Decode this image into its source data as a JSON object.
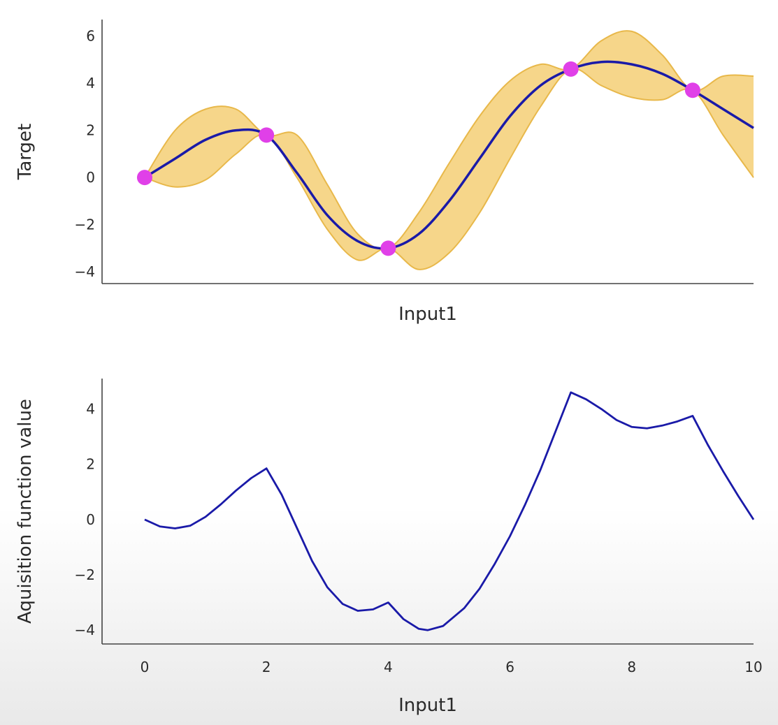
{
  "chart_data": [
    {
      "type": "line",
      "xlabel": "Input1",
      "ylabel": "Target",
      "xlim": [
        -0.7,
        10
      ],
      "ylim": [
        -4.5,
        6.7
      ],
      "yticks": [
        -4,
        -2,
        0,
        2,
        4,
        6
      ],
      "ytick_labels": [
        "−4",
        "−2",
        "0",
        "2",
        "4",
        "6"
      ],
      "grid": false,
      "colors": {
        "mean": "#1a1aa8",
        "band_fill": "#f5cf75",
        "band_edge": "#e8b84a",
        "points": "#e040e8"
      },
      "series": [
        {
          "role": "mean",
          "x": [
            0,
            0.5,
            1,
            1.5,
            2,
            2.5,
            3,
            3.5,
            4,
            4.5,
            5,
            5.5,
            6,
            6.5,
            7,
            7.5,
            8,
            8.5,
            9,
            9.5,
            10
          ],
          "y": [
            0,
            0.8,
            1.6,
            2.0,
            1.8,
            0.2,
            -1.6,
            -2.7,
            -3.0,
            -2.4,
            -1.0,
            0.8,
            2.6,
            3.9,
            4.6,
            4.9,
            4.8,
            4.4,
            3.7,
            2.9,
            2.1
          ]
        },
        {
          "role": "band-upper",
          "x": [
            0,
            0.5,
            1,
            1.5,
            2,
            2.5,
            3,
            3.5,
            4,
            4.5,
            5,
            5.5,
            6,
            6.5,
            7,
            7.5,
            8,
            8.5,
            9,
            9.5,
            10
          ],
          "y": [
            0,
            2.0,
            2.9,
            2.9,
            1.8,
            1.8,
            -0.3,
            -2.4,
            -3.0,
            -1.5,
            0.6,
            2.6,
            4.1,
            4.8,
            4.6,
            5.8,
            6.2,
            5.2,
            3.7,
            4.3,
            4.3
          ]
        },
        {
          "role": "band-lower",
          "x": [
            0,
            0.5,
            1,
            1.5,
            2,
            2.5,
            3,
            3.5,
            4,
            4.5,
            5,
            5.5,
            6,
            6.5,
            7,
            7.5,
            8,
            8.5,
            9,
            9.5,
            10
          ],
          "y": [
            0,
            -0.4,
            -0.1,
            1.0,
            1.8,
            0.0,
            -2.2,
            -3.5,
            -3.0,
            -3.9,
            -3.2,
            -1.5,
            0.8,
            3.0,
            4.6,
            3.9,
            3.4,
            3.3,
            3.7,
            1.8,
            0.0
          ]
        },
        {
          "role": "observations",
          "x": [
            0,
            2,
            4,
            7,
            9
          ],
          "y": [
            0,
            1.8,
            -3.0,
            4.6,
            3.7
          ]
        }
      ]
    },
    {
      "type": "line",
      "xlabel": "Input1",
      "ylabel": "Aquisition function value",
      "xlim": [
        -0.7,
        10
      ],
      "ylim": [
        -4.5,
        5.1
      ],
      "xticks": [
        0,
        2,
        4,
        6,
        8,
        10
      ],
      "xtick_labels": [
        "0",
        "2",
        "4",
        "6",
        "8",
        "10"
      ],
      "yticks": [
        -4,
        -2,
        0,
        2,
        4
      ],
      "ytick_labels": [
        "−4",
        "−2",
        "0",
        "2",
        "4"
      ],
      "grid": false,
      "colors": {
        "line": "#1a1aa8"
      },
      "series": [
        {
          "role": "acquisition",
          "x": [
            0,
            0.25,
            0.5,
            0.75,
            1,
            1.25,
            1.5,
            1.75,
            2,
            2.25,
            2.5,
            2.75,
            3,
            3.25,
            3.5,
            3.75,
            4,
            4.25,
            4.5,
            4.65,
            4.9,
            5.25,
            5.5,
            5.75,
            6,
            6.25,
            6.5,
            6.75,
            7,
            7.25,
            7.5,
            7.75,
            8,
            8.25,
            8.5,
            8.75,
            9,
            9.25,
            9.5,
            9.75,
            10
          ],
          "y": [
            0,
            -0.25,
            -0.32,
            -0.22,
            0.1,
            0.55,
            1.05,
            1.5,
            1.85,
            0.9,
            -0.3,
            -1.5,
            -2.45,
            -3.05,
            -3.3,
            -3.25,
            -3.0,
            -3.6,
            -3.95,
            -4.0,
            -3.85,
            -3.2,
            -2.5,
            -1.6,
            -0.6,
            0.55,
            1.8,
            3.2,
            4.6,
            4.35,
            4.0,
            3.6,
            3.35,
            3.3,
            3.4,
            3.55,
            3.75,
            2.7,
            1.75,
            0.85,
            0.0
          ]
        }
      ]
    }
  ]
}
